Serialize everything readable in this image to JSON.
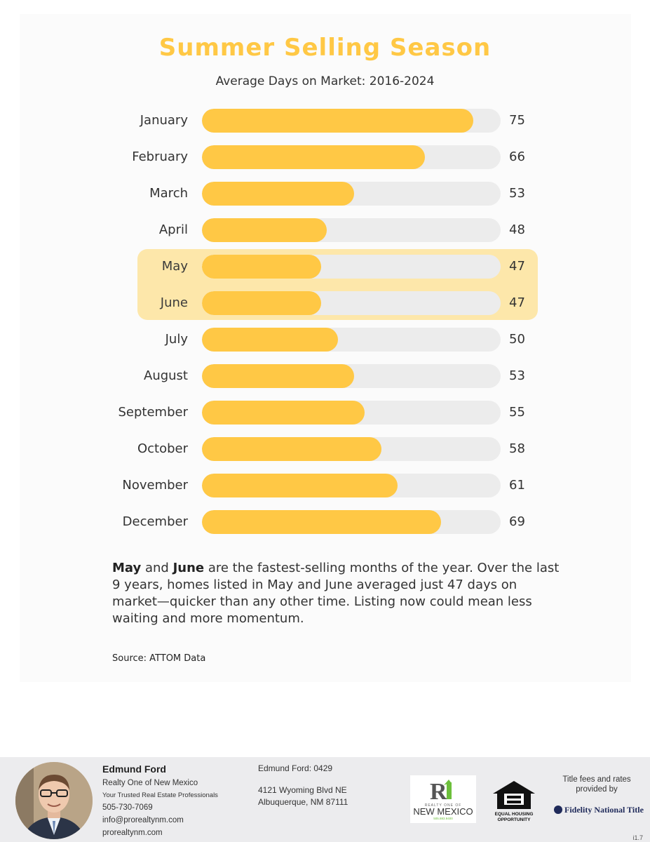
{
  "chart_data": {
    "type": "bar",
    "orientation": "horizontal",
    "title": "Summer Selling Season",
    "subtitle": "Average Days on Market: 2016-2024",
    "categories": [
      "January",
      "February",
      "March",
      "April",
      "May",
      "June",
      "July",
      "August",
      "September",
      "October",
      "November",
      "December"
    ],
    "values": [
      75,
      66,
      53,
      48,
      47,
      47,
      50,
      53,
      55,
      58,
      61,
      69
    ],
    "highlighted": [
      "May",
      "June"
    ],
    "xlim": [
      25,
      80
    ],
    "bar_color": "#ffc845",
    "track_color": "#ececec",
    "highlight_color": "#fde7aa"
  },
  "description": {
    "bold1": "May",
    "text1": " and ",
    "bold2": "June",
    "text2": " are the fastest-selling months of the year.  Over the last 9 years, homes listed in May and June averaged just 47 days on market—quicker than any other time. Listing now could mean less waiting and more momentum."
  },
  "source": "Source: ATTOM Data",
  "footer": {
    "agent_name": "Edmund Ford",
    "brokerage": "Realty One of New Mexico",
    "tagline": "Your Trusted Real Estate Professionals",
    "phone": "505-730-7069",
    "email": "info@prorealtynm.com",
    "website": "prorealtynm.com",
    "license": "Edmund Ford: 0429",
    "address_line1": "4121 Wyoming Blvd NE",
    "address_line2": "Albuquerque, NM 87111",
    "logo_r1_top": "REALTY ONE OF",
    "logo_r1_main": "NEW MEXICO",
    "logo_r1_phone": "505.883.9400",
    "eho_text1": "EQUAL HOUSING",
    "eho_text2": "OPPORTUNITY",
    "fees_text": "Title fees and rates provided by",
    "title_company": "Fidelity National Title",
    "version": "i1.7"
  }
}
